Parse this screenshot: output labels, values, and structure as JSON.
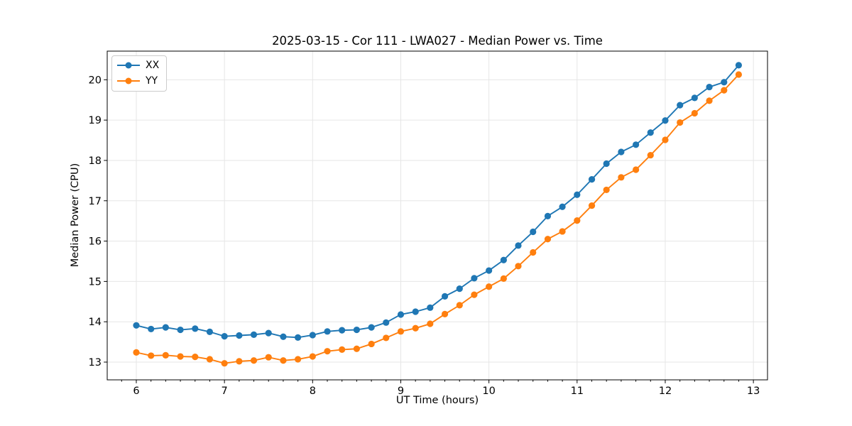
{
  "title": "2025-03-15 - Cor 111 - LWA027 - Median Power vs. Time",
  "colors": {
    "series_xx": "#1f77b4",
    "series_yy": "#ff7f0e",
    "grid": "#e6e6e6",
    "spine": "#000000",
    "background": "#ffffff"
  },
  "chart_data": {
    "type": "line",
    "title": "2025-03-15 - Cor 111 - LWA027 - Median Power vs. Time",
    "xlabel": "UT Time (hours)",
    "ylabel": "Median Power (CPU)",
    "xlim": [
      5.67,
      13.16
    ],
    "ylim": [
      12.56,
      20.71
    ],
    "xticks": [
      6,
      7,
      8,
      9,
      10,
      11,
      12,
      13
    ],
    "yticks": [
      13,
      14,
      15,
      16,
      17,
      18,
      19,
      20
    ],
    "x_minor_tick_step": 0.16667,
    "grid": "major",
    "legend_position": "upper-left",
    "marker": "circle",
    "x": [
      6.0,
      6.167,
      6.333,
      6.5,
      6.667,
      6.833,
      7.0,
      7.167,
      7.333,
      7.5,
      7.667,
      7.833,
      8.0,
      8.167,
      8.333,
      8.5,
      8.667,
      8.833,
      9.0,
      9.167,
      9.333,
      9.5,
      9.667,
      9.833,
      10.0,
      10.167,
      10.333,
      10.5,
      10.667,
      10.833,
      11.0,
      11.167,
      11.333,
      11.5,
      11.667,
      11.833,
      12.0,
      12.167,
      12.333,
      12.5,
      12.667,
      12.833
    ],
    "series": [
      {
        "name": "XX",
        "color": "#1f77b4",
        "values": [
          13.91,
          13.82,
          13.86,
          13.8,
          13.83,
          13.75,
          13.64,
          13.66,
          13.68,
          13.72,
          13.63,
          13.61,
          13.67,
          13.76,
          13.79,
          13.8,
          13.86,
          13.98,
          14.18,
          14.25,
          14.35,
          14.63,
          14.82,
          15.08,
          15.27,
          15.53,
          15.89,
          16.23,
          16.62,
          16.85,
          17.15,
          17.53,
          17.92,
          18.21,
          18.39,
          18.69,
          18.99,
          19.37,
          19.55,
          19.82,
          19.94,
          20.36
        ]
      },
      {
        "name": "YY",
        "color": "#ff7f0e",
        "values": [
          13.24,
          13.16,
          13.17,
          13.14,
          13.13,
          13.07,
          12.97,
          13.02,
          13.04,
          13.12,
          13.04,
          13.07,
          13.14,
          13.27,
          13.31,
          13.33,
          13.45,
          13.6,
          13.76,
          13.84,
          13.95,
          14.19,
          14.41,
          14.67,
          14.87,
          15.07,
          15.38,
          15.72,
          16.05,
          16.24,
          16.51,
          16.88,
          17.27,
          17.58,
          17.77,
          18.13,
          18.51,
          18.94,
          19.17,
          19.48,
          19.74,
          20.13
        ]
      }
    ]
  }
}
